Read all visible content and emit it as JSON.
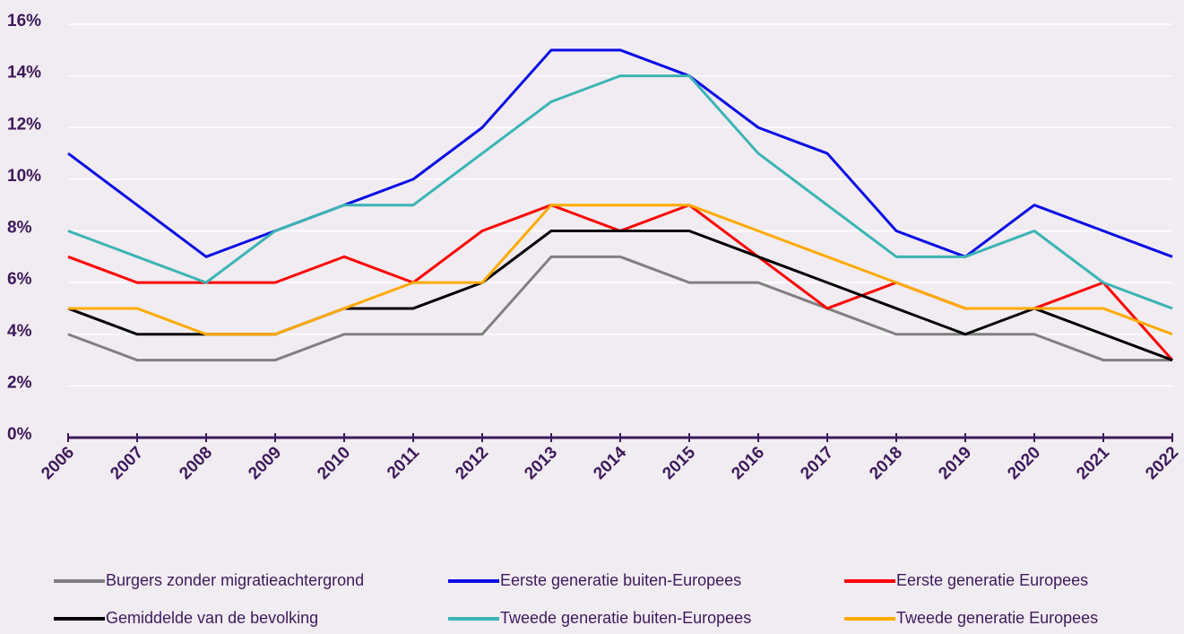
{
  "chart_data": {
    "type": "line",
    "categories": [
      "2006",
      "2007",
      "2008",
      "2009",
      "2010",
      "2011",
      "2012",
      "2013",
      "2014",
      "2015",
      "2016",
      "2017",
      "2018",
      "2019",
      "2020",
      "2021",
      "2022"
    ],
    "series": [
      {
        "name": "Burgers zonder migratieachtergrond",
        "color": "#808080",
        "values": [
          4,
          3,
          3,
          3,
          4,
          4,
          4,
          7,
          7,
          6,
          6,
          5,
          4,
          4,
          4,
          3,
          3
        ]
      },
      {
        "name": "Eerste generatie buiten-Europees",
        "color": "#0a0ae6",
        "values": [
          11,
          9,
          7,
          8,
          9,
          10,
          12,
          15,
          15,
          14,
          12,
          11,
          8,
          7,
          9,
          8,
          7
        ]
      },
      {
        "name": "Eerste generatie Europees",
        "color": "#ff0000",
        "values": [
          7,
          6,
          6,
          6,
          7,
          6,
          8,
          9,
          8,
          9,
          7,
          5,
          6,
          5,
          5,
          6,
          3
        ]
      },
      {
        "name": "Gemiddelde van de bevolking",
        "color": "#000000",
        "values": [
          5,
          4,
          4,
          4,
          5,
          5,
          6,
          8,
          8,
          8,
          7,
          6,
          5,
          4,
          5,
          4,
          3
        ]
      },
      {
        "name": "Tweede generatie buiten-Europees",
        "color": "#3cb4b4",
        "values": [
          8,
          7,
          6,
          8,
          9,
          9,
          11,
          13,
          14,
          14,
          11,
          9,
          7,
          7,
          8,
          6,
          5
        ]
      },
      {
        "name": "Tweede generatie Europees",
        "color": "#ffaa00",
        "values": [
          5,
          5,
          4,
          4,
          5,
          6,
          6,
          9,
          9,
          9,
          8,
          7,
          6,
          5,
          5,
          5,
          4
        ]
      }
    ],
    "ylim": [
      0,
      16
    ],
    "yticks": [
      {
        "value": 0,
        "label": "0%"
      },
      {
        "value": 2,
        "label": "2%"
      },
      {
        "value": 4,
        "label": "4%"
      },
      {
        "value": 6,
        "label": "6%"
      },
      {
        "value": 8,
        "label": "8%"
      },
      {
        "value": 10,
        "label": "10%"
      },
      {
        "value": 12,
        "label": "12%"
      },
      {
        "value": 14,
        "label": "14%"
      },
      {
        "value": 16,
        "label": "16%"
      }
    ],
    "grid": true,
    "legend": "bottom"
  }
}
